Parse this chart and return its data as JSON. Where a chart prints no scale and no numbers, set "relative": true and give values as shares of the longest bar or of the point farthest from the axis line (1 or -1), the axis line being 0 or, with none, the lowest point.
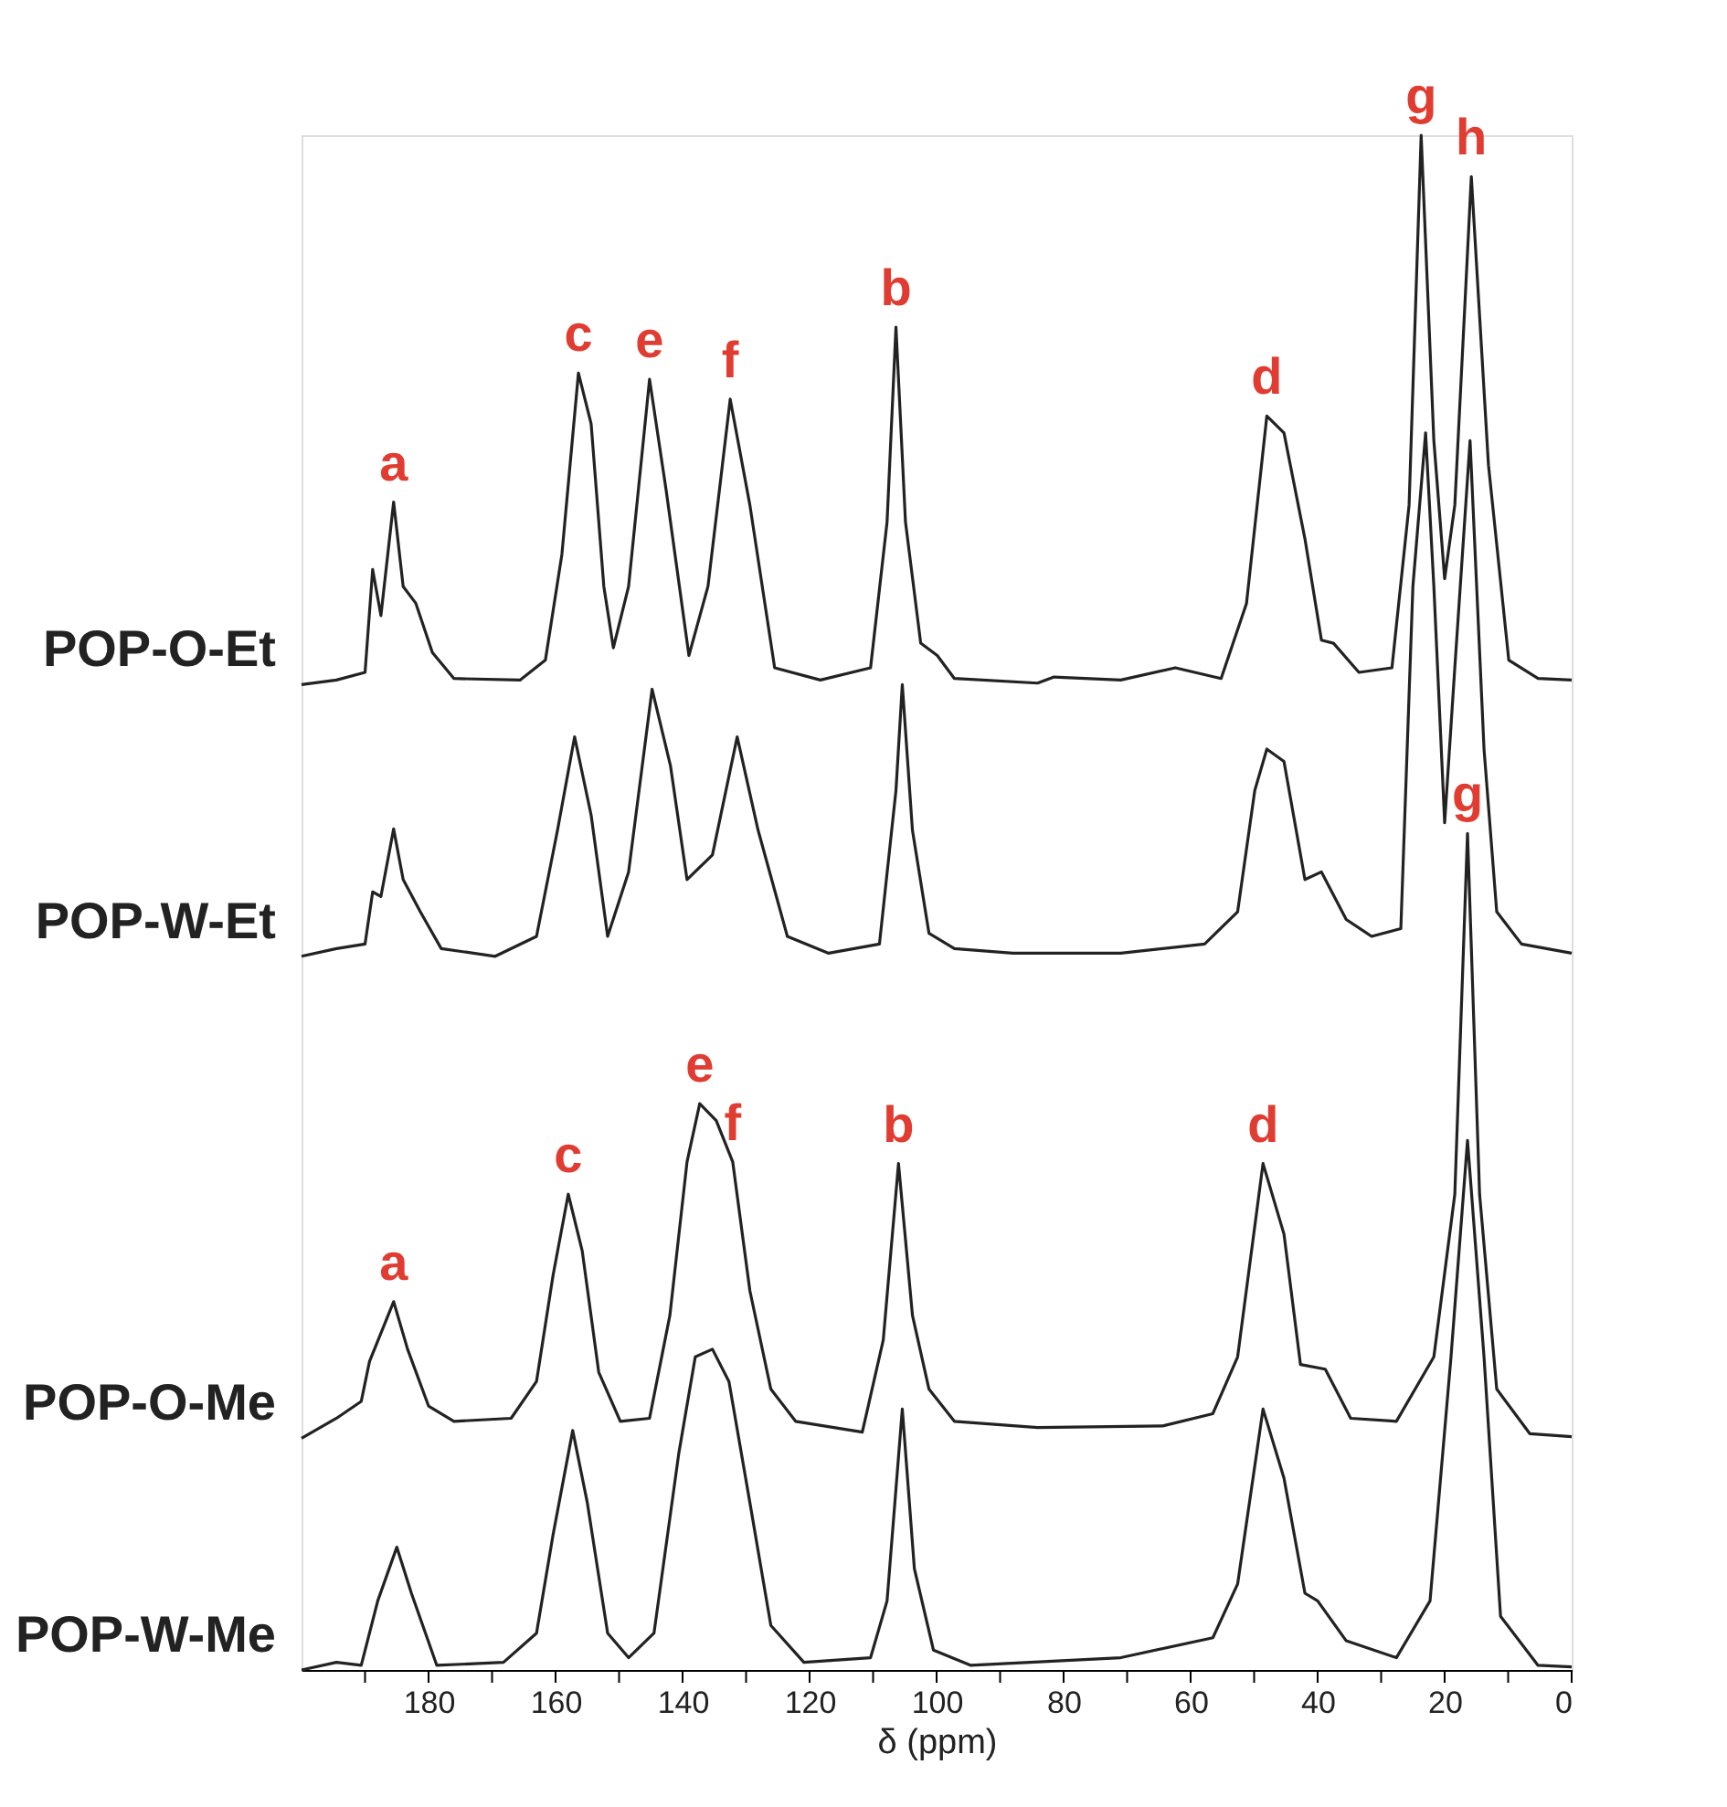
{
  "chart_data": {
    "type": "line",
    "relative": true,
    "xlabel": "δ (ppm)",
    "xlim": [
      200,
      0
    ],
    "xticks": [
      {
        "value": 190,
        "label": null
      },
      180,
      {
        "value": 170,
        "label": null
      },
      160,
      {
        "value": 150,
        "label": null
      },
      140,
      {
        "value": 130,
        "label": null
      },
      120,
      {
        "value": 110,
        "label": null
      },
      100,
      {
        "value": 90,
        "label": null
      },
      80,
      {
        "value": 70,
        "label": null
      },
      60,
      {
        "value": 50,
        "label": null
      },
      40,
      {
        "value": 30,
        "label": null
      },
      20,
      {
        "value": 10,
        "label": null
      },
      0
    ],
    "grid": false,
    "legend": false,
    "marker": "none",
    "line_style": "solid",
    "series": [
      {
        "name": "POP-O-Et",
        "color": "#222222",
        "x": [
          200,
          194.5,
          190,
          188.8,
          187.5,
          185.5,
          184,
          182,
          179.4,
          176,
          165.6,
          161.6,
          159,
          156.4,
          154.4,
          152.4,
          150.9,
          148.5,
          145.2,
          142.6,
          139,
          136,
          132.5,
          129.4,
          125.5,
          118.3,
          110.4,
          107.8,
          106.4,
          104.9,
          102.5,
          99.9,
          97.2,
          84.1,
          81.5,
          71,
          62.4,
          55.2,
          51.2,
          48,
          45.3,
          42,
          39.4,
          37.5,
          33.5,
          28.3,
          25.6,
          23.7,
          21.7,
          20,
          18.4,
          15.8,
          13.1,
          9.9,
          5.3,
          0
        ],
        "values": [
          0.642,
          0.645,
          0.65,
          0.717,
          0.687,
          0.761,
          0.706,
          0.695,
          0.663,
          0.646,
          0.645,
          0.658,
          0.727,
          0.845,
          0.812,
          0.706,
          0.666,
          0.706,
          0.841,
          0.769,
          0.661,
          0.706,
          0.828,
          0.759,
          0.653,
          0.645,
          0.653,
          0.748,
          0.875,
          0.748,
          0.669,
          0.661,
          0.646,
          0.643,
          0.647,
          0.645,
          0.653,
          0.646,
          0.695,
          0.817,
          0.806,
          0.737,
          0.671,
          0.669,
          0.65,
          0.653,
          0.759,
          1,
          0.801,
          0.711,
          0.759,
          0.973,
          0.785,
          0.658,
          0.646,
          0.645
        ]
      },
      {
        "name": "POP-W-Et",
        "color": "#222222",
        "x": [
          200,
          194.5,
          190,
          188.8,
          187.5,
          185.5,
          184,
          181.3,
          178,
          169.5,
          163,
          159.7,
          157,
          154.4,
          151.8,
          148.5,
          144.8,
          141.9,
          139.3,
          135.3,
          131.4,
          128.1,
          123.5,
          117,
          109,
          106.4,
          105.4,
          103.8,
          101.2,
          97.2,
          88,
          71,
          57.8,
          52.6,
          49.9,
          48,
          45.3,
          42,
          39.4,
          35.5,
          31.5,
          26.9,
          25,
          23,
          21.7,
          20,
          18.4,
          16,
          13.8,
          11.8,
          7.9,
          0
        ],
        "values": [
          0.465,
          0.47,
          0.473,
          0.507,
          0.504,
          0.548,
          0.515,
          0.494,
          0.47,
          0.465,
          0.478,
          0.547,
          0.608,
          0.557,
          0.478,
          0.52,
          0.639,
          0.589,
          0.515,
          0.531,
          0.608,
          0.547,
          0.478,
          0.467,
          0.473,
          0.573,
          0.642,
          0.547,
          0.48,
          0.47,
          0.467,
          0.467,
          0.473,
          0.494,
          0.573,
          0.6,
          0.592,
          0.515,
          0.52,
          0.489,
          0.478,
          0.483,
          0.706,
          0.806,
          0.706,
          0.552,
          0.653,
          0.801,
          0.6,
          0.494,
          0.473,
          0.467
        ]
      },
      {
        "name": "POP-O-Me",
        "color": "#222222",
        "x": [
          200,
          194.5,
          190.6,
          189.3,
          185.5,
          183.3,
          180,
          176,
          167,
          163,
          160.4,
          158,
          155.8,
          153.2,
          149.8,
          145.2,
          142,
          139.3,
          137.3,
          134.7,
          132.1,
          129.4,
          126.1,
          122.2,
          111.7,
          108.4,
          106,
          103.8,
          101.2,
          97.2,
          84.1,
          64.4,
          56.5,
          52.6,
          48.6,
          45.3,
          42.7,
          38.8,
          34.8,
          27.6,
          21.7,
          18.4,
          16.4,
          14.5,
          11.8,
          6.6,
          0
        ],
        "values": [
          0.151,
          0.164,
          0.175,
          0.201,
          0.24,
          0.209,
          0.172,
          0.162,
          0.164,
          0.188,
          0.257,
          0.31,
          0.273,
          0.194,
          0.162,
          0.164,
          0.231,
          0.331,
          0.369,
          0.358,
          0.331,
          0.247,
          0.183,
          0.162,
          0.155,
          0.215,
          0.33,
          0.231,
          0.183,
          0.162,
          0.158,
          0.159,
          0.167,
          0.204,
          0.33,
          0.284,
          0.199,
          0.196,
          0.164,
          0.162,
          0.204,
          0.31,
          0.545,
          0.31,
          0.183,
          0.154,
          0.152
        ]
      },
      {
        "name": "POP-W-Me",
        "color": "#222222",
        "x": [
          200,
          194.5,
          190.6,
          188,
          185,
          182.7,
          178.7,
          168.2,
          163,
          160.4,
          157.3,
          155,
          151.8,
          148.5,
          144.5,
          140.6,
          138,
          135.3,
          132.7,
          129.4,
          126.1,
          120.9,
          110.4,
          107.8,
          105.4,
          103.5,
          100.5,
          94.6,
          71,
          56.5,
          52.6,
          48.6,
          45.3,
          42,
          40,
          35.5,
          27.6,
          22.3,
          19,
          16.4,
          13.8,
          11.2,
          5.3,
          0
        ],
        "values": [
          0,
          0.005,
          0.003,
          0.045,
          0.08,
          0.05,
          0.003,
          0.005,
          0.024,
          0.088,
          0.156,
          0.109,
          0.024,
          0.008,
          0.024,
          0.141,
          0.204,
          0.209,
          0.188,
          0.109,
          0.029,
          0.005,
          0.008,
          0.045,
          0.17,
          0.066,
          0.013,
          0.003,
          0.008,
          0.021,
          0.056,
          0.17,
          0.125,
          0.05,
          0.045,
          0.019,
          0.008,
          0.045,
          0.204,
          0.345,
          0.204,
          0.035,
          0.003,
          0.002
        ]
      }
    ],
    "annotations": [
      {
        "text": "a",
        "x": 185.5,
        "y": 0.761
      },
      {
        "text": "c",
        "x": 156.4,
        "y": 0.845
      },
      {
        "text": "e",
        "x": 145.2,
        "y": 0.841
      },
      {
        "text": "f",
        "x": 132.5,
        "y": 0.828
      },
      {
        "text": "b",
        "x": 106.4,
        "y": 0.875
      },
      {
        "text": "d",
        "x": 48,
        "y": 0.817
      },
      {
        "text": "g",
        "x": 23.7,
        "y": 1
      },
      {
        "text": "h",
        "x": 15.8,
        "y": 0.973
      },
      {
        "text": "a",
        "x": 185.5,
        "y": 0.24
      },
      {
        "text": "c",
        "x": 158,
        "y": 0.31
      },
      {
        "text": "e",
        "x": 137.3,
        "y": 0.369
      },
      {
        "text": "f",
        "x": 132.1,
        "y": 0.331
      },
      {
        "text": "b",
        "x": 106,
        "y": 0.33
      },
      {
        "text": "d",
        "x": 48.6,
        "y": 0.33
      },
      {
        "text": "g",
        "x": 16.4,
        "y": 0.545
      }
    ]
  }
}
